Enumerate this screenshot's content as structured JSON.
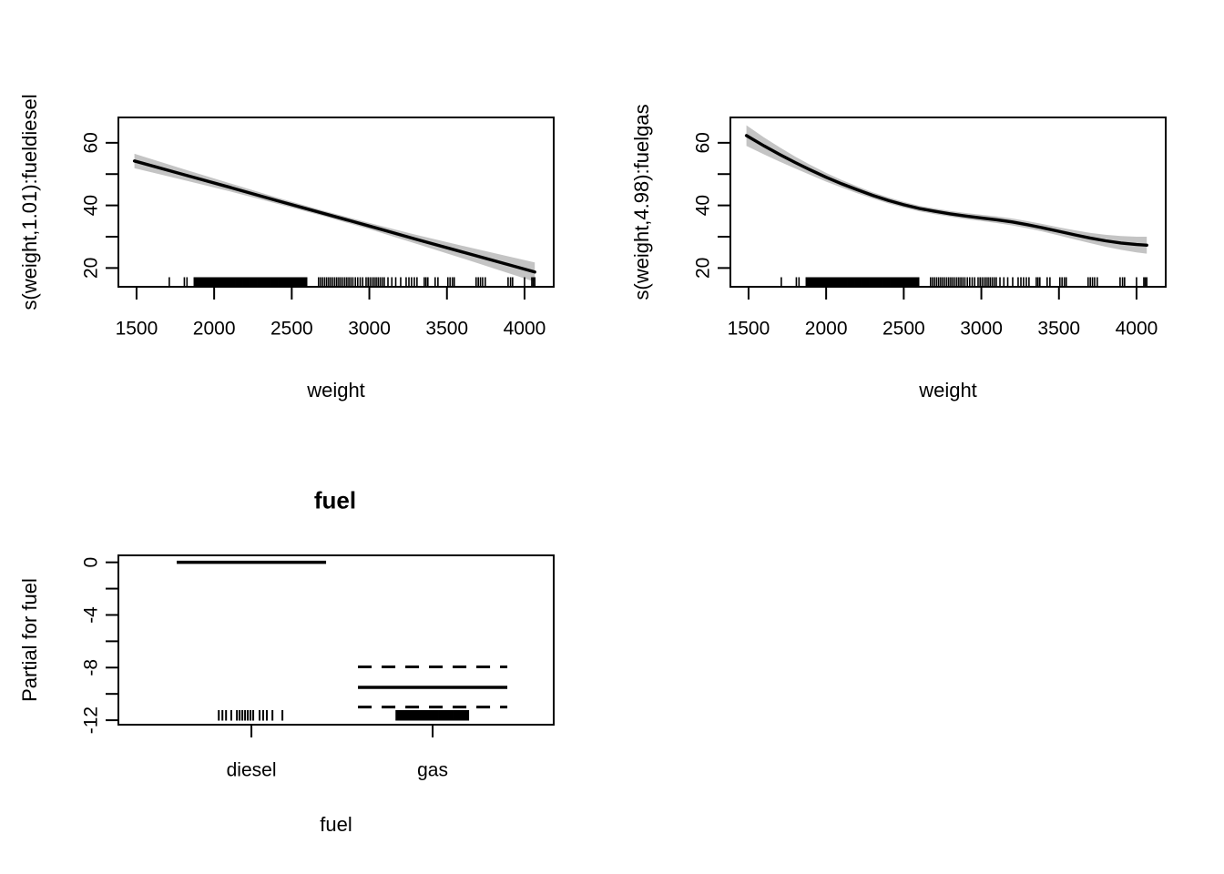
{
  "figure": {
    "background": "#ffffff",
    "stroke_color": "#000000",
    "band_color": "#c4c4c4"
  },
  "chart_data": {
    "type": "line",
    "description": "GAM partial effect plots: two smooths of weight (by fuel) with shaded confidence bands and rug, plus one factor term plot for fuel",
    "rug_weights": [
      1711,
      1808,
      1825,
      1872,
      1880,
      1887,
      1893,
      1900,
      1906,
      1913,
      1919,
      1926,
      1932,
      1939,
      1946,
      1952,
      1959,
      1965,
      1972,
      1978,
      1985,
      1992,
      1998,
      2005,
      2012,
      2018,
      2025,
      2032,
      2038,
      2045,
      2052,
      2058,
      2065,
      2072,
      2078,
      2085,
      2092,
      2099,
      2105,
      2112,
      2119,
      2126,
      2132,
      2139,
      2146,
      2152,
      2159,
      2166,
      2172,
      2179,
      2186,
      2193,
      2199,
      2206,
      2213,
      2220,
      2226,
      2233,
      2240,
      2246,
      2253,
      2260,
      2267,
      2273,
      2280,
      2287,
      2294,
      2300,
      2307,
      2314,
      2320,
      2327,
      2334,
      2341,
      2347,
      2354,
      2361,
      2368,
      2374,
      2381,
      2388,
      2394,
      2401,
      2408,
      2415,
      2421,
      2428,
      2435,
      2442,
      2448,
      2455,
      2462,
      2468,
      2475,
      2482,
      2489,
      2495,
      2502,
      2509,
      2516,
      2522,
      2529,
      2536,
      2542,
      2549,
      2556,
      2563,
      2569,
      2576,
      2583,
      2590,
      2596,
      2673,
      2686,
      2699,
      2712,
      2725,
      2738,
      2751,
      2764,
      2777,
      2790,
      2803,
      2816,
      2829,
      2842,
      2855,
      2868,
      2881,
      2894,
      2910,
      2925,
      2941,
      2957,
      2979,
      2992,
      3005,
      3018,
      3031,
      3044,
      3057,
      3070,
      3083,
      3096,
      3120,
      3145,
      3170,
      3202,
      3237,
      3255,
      3272,
      3290,
      3307,
      3354,
      3365,
      3377,
      3424,
      3442,
      3506,
      3520,
      3535,
      3547,
      3688,
      3702,
      3716,
      3730,
      3747,
      3894,
      3910,
      3923,
      4000,
      4047,
      4056,
      4066
    ],
    "panels": [
      {
        "id": "top-left",
        "type": "smooth",
        "ylab": "s(weight,1.01):fueldiesel",
        "xlab": "weight",
        "xlim": [
          1383,
          4188
        ],
        "ylim": [
          14.0,
          68.1
        ],
        "x_ticks": {
          "values": [
            1500,
            2000,
            2500,
            3000,
            3500,
            4000
          ],
          "labels": [
            "1500",
            "2000",
            "2500",
            "3000",
            "3500",
            "4000"
          ]
        },
        "y_ticks": {
          "values": [
            20,
            30,
            40,
            50,
            60
          ],
          "labels": [
            "20",
            "",
            "40",
            "",
            "60"
          ]
        },
        "series": {
          "x": [
            1486,
            1800,
            2100,
            2400,
            2700,
            3000,
            3300,
            3600,
            3900,
            4066
          ],
          "fit": [
            54.2,
            49.9,
            45.8,
            41.6,
            37.5,
            33.4,
            29.2,
            25.1,
            21.0,
            18.7
          ],
          "half_width": [
            2.3,
            1.75,
            1.3,
            1.0,
            0.85,
            1.0,
            1.4,
            2.0,
            2.7,
            3.1
          ]
        },
        "rug_ref": "rug_weights"
      },
      {
        "id": "top-right",
        "type": "smooth",
        "ylab": "s(weight,4.98):fuelgas",
        "xlab": "weight",
        "xlim": [
          1383,
          4188
        ],
        "ylim": [
          14.0,
          68.1
        ],
        "x_ticks": {
          "values": [
            1500,
            2000,
            2500,
            3000,
            3500,
            4000
          ],
          "labels": [
            "1500",
            "2000",
            "2500",
            "3000",
            "3500",
            "4000"
          ]
        },
        "y_ticks": {
          "values": [
            20,
            30,
            40,
            50,
            60
          ],
          "labels": [
            "20",
            "",
            "40",
            "",
            "60"
          ]
        },
        "series": {
          "x": [
            1486,
            1600,
            1700,
            1800,
            1900,
            2000,
            2100,
            2200,
            2300,
            2400,
            2500,
            2600,
            2700,
            2800,
            2900,
            3000,
            3100,
            3200,
            3300,
            3400,
            3500,
            3600,
            3700,
            3800,
            3900,
            4000,
            4066
          ],
          "fit": [
            62.3,
            59.0,
            56.3,
            53.7,
            51.3,
            49.0,
            46.9,
            45.0,
            43.2,
            41.6,
            40.2,
            39.0,
            38.1,
            37.3,
            36.6,
            36.0,
            35.4,
            34.7,
            33.8,
            32.8,
            31.7,
            30.6,
            29.6,
            28.7,
            28.0,
            27.5,
            27.3
          ],
          "half_width": [
            3.3,
            2.7,
            2.3,
            1.9,
            1.6,
            1.4,
            1.2,
            1.1,
            1.0,
            0.95,
            0.9,
            0.9,
            0.9,
            0.9,
            0.95,
            1.0,
            1.05,
            1.1,
            1.15,
            1.2,
            1.3,
            1.45,
            1.65,
            1.9,
            2.2,
            2.5,
            2.7
          ]
        },
        "rug_ref": "rug_weights"
      },
      {
        "id": "bottom-left",
        "type": "factor",
        "title": "fuel",
        "ylab": "Partial for fuel",
        "xlab": "fuel",
        "xlim": [
          0.266,
          2.668
        ],
        "ylim": [
          -12.34,
          0.53
        ],
        "x_ticks": {
          "values": [
            1,
            2
          ],
          "labels": [
            "diesel",
            "gas"
          ]
        },
        "y_ticks": {
          "values": [
            0,
            -2,
            -4,
            -6,
            -8,
            -10,
            -12
          ],
          "labels": [
            "0",
            "",
            "-4",
            "",
            "-8",
            "",
            "-12"
          ]
        },
        "levels": [
          {
            "label": "diesel",
            "x": 1,
            "fit": 0,
            "upper": null,
            "lower": null,
            "half_span": 0.412
          },
          {
            "label": "gas",
            "x": 2,
            "fit": -9.5,
            "upper": -7.95,
            "lower": -11.0,
            "half_span": 0.412
          }
        ],
        "rug": [
          [
            0.82,
            0.84,
            0.86,
            0.889,
            0.92,
            0.935,
            0.95,
            0.965,
            0.98,
            0.995,
            1.01,
            1.045,
            1.065,
            1.085,
            1.116,
            1.171
          ],
          [
            1.8,
            1.807,
            1.815,
            1.822,
            1.829,
            1.837,
            1.844,
            1.851,
            1.859,
            1.866,
            1.873,
            1.881,
            1.888,
            1.895,
            1.903,
            1.91,
            1.917,
            1.925,
            1.932,
            1.939,
            1.947,
            1.954,
            1.961,
            1.969,
            1.976,
            1.983,
            1.991,
            1.998,
            2.005,
            2.013,
            2.02,
            2.027,
            2.035,
            2.042,
            2.049,
            2.057,
            2.064,
            2.071,
            2.079,
            2.086,
            2.093,
            2.101,
            2.108,
            2.115,
            2.123,
            2.13,
            2.137,
            2.145,
            2.152,
            2.159,
            2.167,
            2.174,
            2.181,
            2.189,
            2.196
          ]
        ]
      }
    ]
  }
}
